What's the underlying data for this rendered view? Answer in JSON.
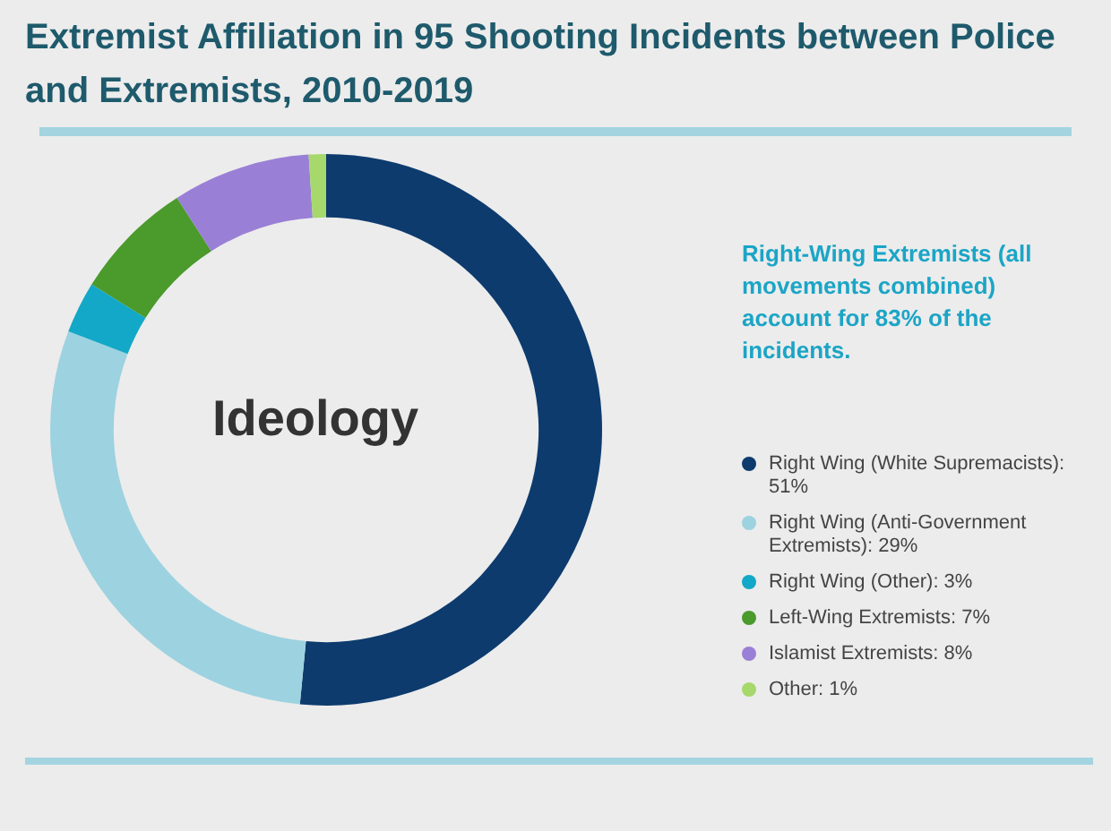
{
  "chart_data": {
    "type": "donut",
    "title": "Extremist Affiliation in 95 Shooting Incidents between Police and Extremists, 2010-2019",
    "categories": [
      "Right Wing (White Supremacists): 51%",
      "Right Wing (Anti-Government Extremists): 29%",
      "Right Wing (Other): 3%",
      "Left-Wing Extremists: 7%",
      "Islamist Extremists: 8%",
      "Other: 1%"
    ],
    "values": [
      51,
      29,
      3,
      7,
      8,
      1
    ],
    "colors": [
      "#0d3b6e",
      "#9dd2e0",
      "#13a8c7",
      "#4a9a2c",
      "#9a7fd6",
      "#a6d86b"
    ],
    "legend": "right",
    "annotations": [
      "Ideology",
      "Right-Wing Extremists (all movements combined) account for 83% of the incidents."
    ]
  }
}
